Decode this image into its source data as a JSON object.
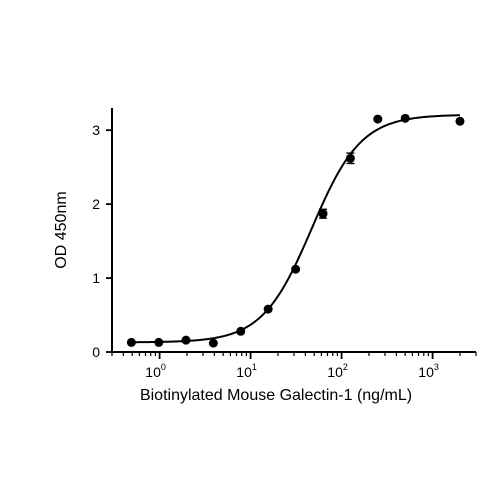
{
  "chart_data": {
    "type": "scatter",
    "xlabel": "Biotinylated Mouse Galectin-1 (ng/mL)",
    "ylabel": "OD 450nm",
    "xscale": "log",
    "xlim": [
      0.3,
      3000
    ],
    "ylim": [
      0,
      3.3
    ],
    "y_ticks": [
      0,
      1,
      2,
      3
    ],
    "x_ticks": [
      {
        "base": "10",
        "exp": "0",
        "value": 1
      },
      {
        "base": "10",
        "exp": "1",
        "value": 10
      },
      {
        "base": "10",
        "exp": "2",
        "value": 100
      },
      {
        "base": "10",
        "exp": "3",
        "value": 1000
      }
    ],
    "grid": false,
    "points": [
      {
        "x": 0.49,
        "y": 0.13,
        "err": 0
      },
      {
        "x": 0.98,
        "y": 0.13,
        "err": 0
      },
      {
        "x": 1.95,
        "y": 0.16,
        "err": 0
      },
      {
        "x": 3.9,
        "y": 0.12,
        "err": 0
      },
      {
        "x": 7.8,
        "y": 0.28,
        "err": 0
      },
      {
        "x": 15.6,
        "y": 0.58,
        "err": 0
      },
      {
        "x": 31.25,
        "y": 1.12,
        "err": 0
      },
      {
        "x": 62.5,
        "y": 1.87,
        "err": 0.06
      },
      {
        "x": 125,
        "y": 2.62,
        "err": 0.07
      },
      {
        "x": 250,
        "y": 3.15,
        "err": 0
      },
      {
        "x": 500,
        "y": 3.16,
        "err": 0
      },
      {
        "x": 2000,
        "y": 3.12,
        "err": 0
      }
    ],
    "fit": {
      "model": "4PL",
      "bottom": 0.13,
      "top": 3.21,
      "ec50": 47,
      "hill": 1.6
    }
  }
}
